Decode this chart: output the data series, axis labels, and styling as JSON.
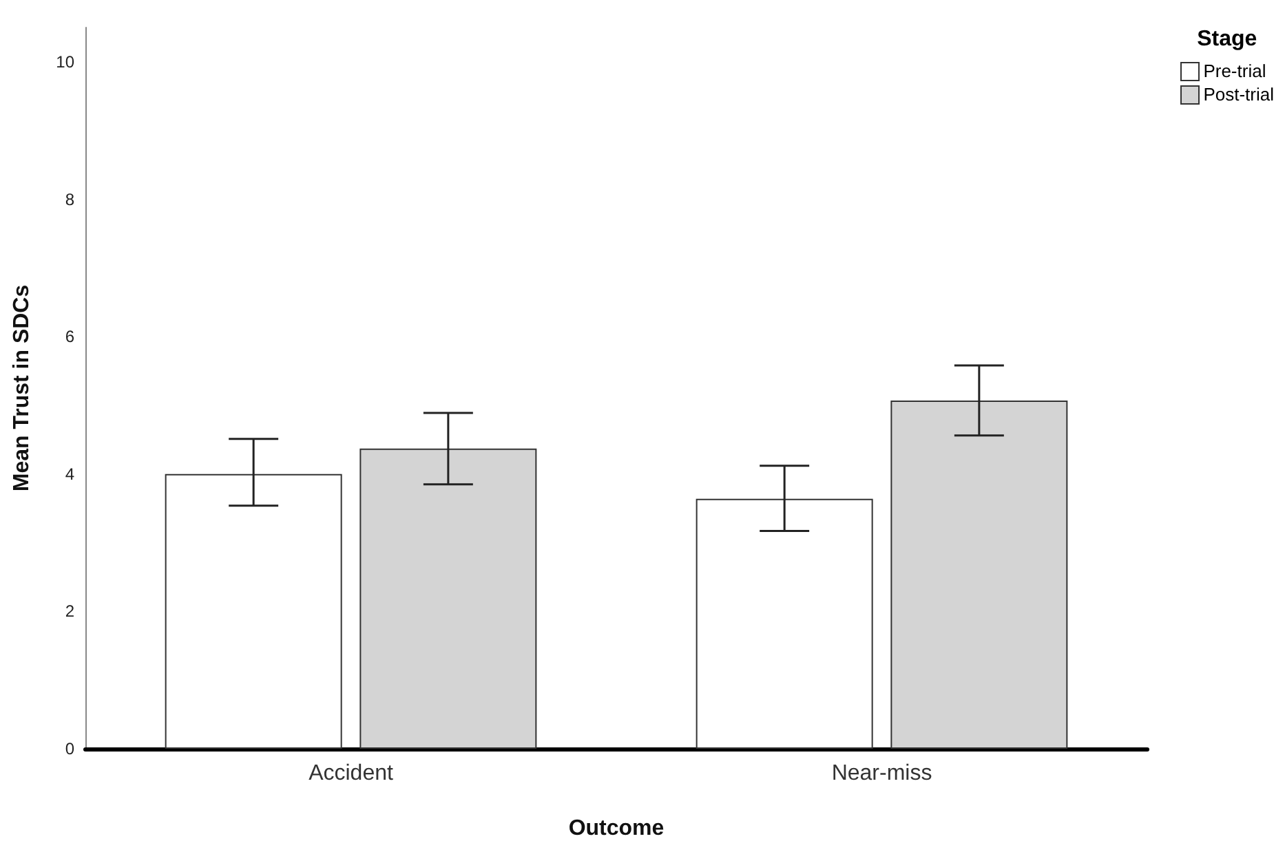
{
  "chart_data": {
    "type": "bar",
    "xlabel": "Outcome",
    "ylabel": "Mean Trust in SDCs",
    "legend_title": "Stage",
    "categories": [
      "Accident",
      "Near-miss"
    ],
    "series": [
      {
        "name": "Pre-trial",
        "color": "#ffffff",
        "values": [
          4.0,
          3.64
        ],
        "errors": [
          [
            3.54,
            4.51
          ],
          [
            3.17,
            4.12
          ]
        ]
      },
      {
        "name": "Post-trial",
        "color": "#d4d4d4",
        "values": [
          4.37,
          5.07
        ],
        "errors": [
          [
            3.85,
            4.89
          ],
          [
            4.56,
            5.58
          ]
        ]
      }
    ],
    "ylim": [
      0,
      10.5
    ],
    "yticks": [
      0,
      2,
      4,
      6,
      8,
      10
    ],
    "grid": false,
    "legend": "top right"
  }
}
